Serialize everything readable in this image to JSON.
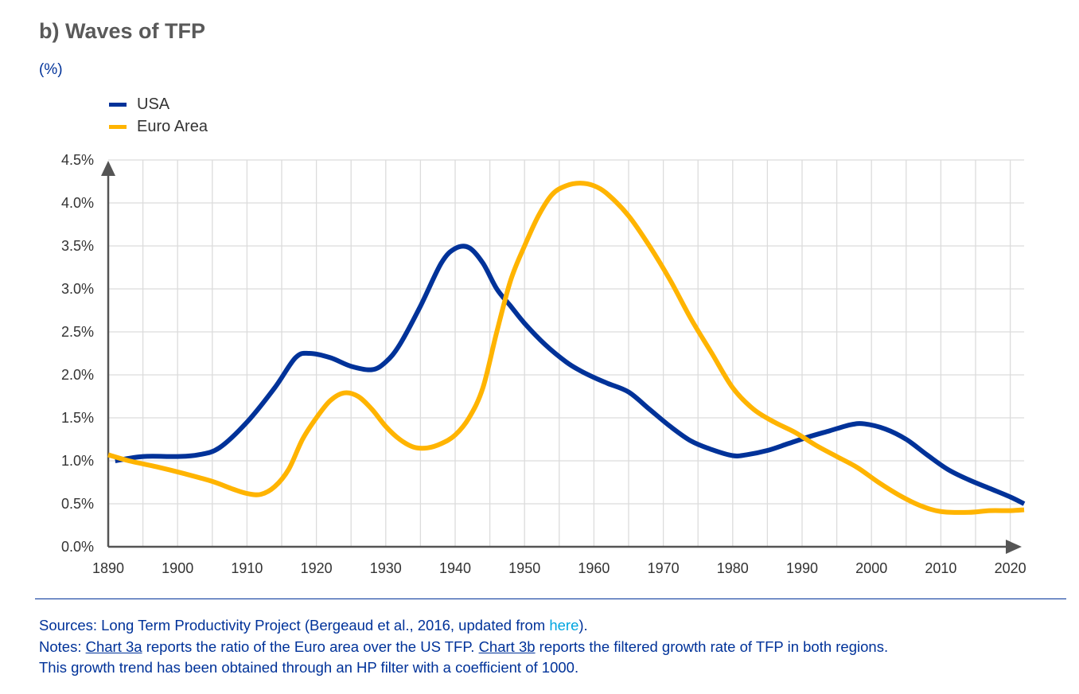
{
  "title": "b) Waves of TFP",
  "unit": "(%)",
  "colors": {
    "usa": "#003299",
    "euro": "#FFB400"
  },
  "footer": {
    "sources_prefix": "Sources: Long Term Productivity Project (Bergeaud et al., 2016, updated from ",
    "sources_link": "here",
    "sources_suffix": ").",
    "notes_prefix": "Notes: ",
    "notes_link1": "Chart 3a",
    "notes_mid": " reports the ratio of the Euro area over the US TFP. ",
    "notes_link2": "Chart 3b",
    "notes_suffix": " reports the filtered growth rate of TFP in both regions.",
    "line3": "This growth trend has been obtained through an HP filter with a coefficient of 1000."
  },
  "chart_data": {
    "type": "line",
    "title": "b) Waves of TFP",
    "ylabel": "(%)",
    "xlim": [
      1890,
      2022
    ],
    "ylim": [
      0,
      4.5
    ],
    "grid": true,
    "legend_position": "top-left",
    "x_ticks": [
      "1890",
      "1900",
      "1910",
      "1920",
      "1930",
      "1940",
      "1950",
      "1960",
      "1970",
      "1980",
      "1990",
      "2000",
      "2010",
      "2020"
    ],
    "y_ticks": [
      "0.0%",
      "0.5%",
      "1.0%",
      "1.5%",
      "2.0%",
      "2.5%",
      "3.0%",
      "3.5%",
      "4.0%",
      "4.5%"
    ],
    "series": [
      {
        "name": "USA",
        "x": [
          1891,
          1895,
          1900,
          1903,
          1906,
          1910,
          1914,
          1917,
          1919,
          1922,
          1925,
          1928,
          1930,
          1932,
          1935,
          1938,
          1940,
          1942,
          1944,
          1946,
          1948,
          1950,
          1953,
          1956,
          1958,
          1960,
          1962,
          1965,
          1968,
          1971,
          1974,
          1977,
          1980,
          1982,
          1985,
          1988,
          1991,
          1994,
          1997,
          1999,
          2002,
          2005,
          2008,
          2011,
          2014,
          2017,
          2020,
          2022
        ],
        "y": [
          1.0,
          1.05,
          1.05,
          1.07,
          1.15,
          1.45,
          1.85,
          2.2,
          2.25,
          2.2,
          2.1,
          2.06,
          2.15,
          2.35,
          2.8,
          3.3,
          3.47,
          3.48,
          3.3,
          3.0,
          2.8,
          2.6,
          2.35,
          2.15,
          2.05,
          1.97,
          1.9,
          1.8,
          1.6,
          1.4,
          1.23,
          1.13,
          1.06,
          1.07,
          1.12,
          1.2,
          1.28,
          1.35,
          1.42,
          1.43,
          1.37,
          1.25,
          1.07,
          0.9,
          0.78,
          0.68,
          0.58,
          0.5
        ]
      },
      {
        "name": "Euro Area",
        "x": [
          1890,
          1893,
          1897,
          1901,
          1905,
          1908,
          1910,
          1912,
          1914,
          1916,
          1918,
          1920,
          1922,
          1924,
          1926,
          1928,
          1930,
          1932,
          1934,
          1936,
          1938,
          1940,
          1942,
          1944,
          1946,
          1948,
          1950,
          1952,
          1954,
          1956,
          1958,
          1960,
          1962,
          1965,
          1968,
          1971,
          1974,
          1977,
          1980,
          1983,
          1986,
          1989,
          1992,
          1995,
          1998,
          2001,
          2004,
          2007,
          2010,
          2014,
          2017,
          2020,
          2022
        ],
        "y": [
          1.07,
          1.0,
          0.93,
          0.85,
          0.76,
          0.67,
          0.62,
          0.61,
          0.7,
          0.9,
          1.25,
          1.5,
          1.7,
          1.79,
          1.75,
          1.6,
          1.4,
          1.25,
          1.16,
          1.15,
          1.2,
          1.3,
          1.5,
          1.85,
          2.5,
          3.1,
          3.5,
          3.85,
          4.1,
          4.2,
          4.23,
          4.2,
          4.1,
          3.85,
          3.5,
          3.1,
          2.65,
          2.25,
          1.85,
          1.6,
          1.45,
          1.33,
          1.18,
          1.05,
          0.92,
          0.75,
          0.6,
          0.48,
          0.41,
          0.4,
          0.42,
          0.42,
          0.43
        ]
      }
    ]
  }
}
